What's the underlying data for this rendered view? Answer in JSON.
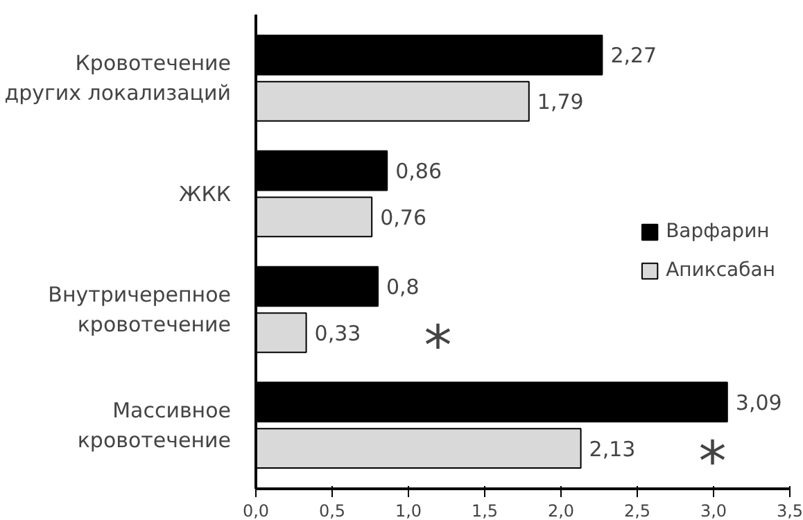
{
  "chart_data": {
    "type": "bar",
    "orientation": "horizontal",
    "categories": [
      "Кровотечение других локализаций",
      "ЖКК",
      "Внутричерепное кровотечение",
      "Массивное кровотечение"
    ],
    "series": [
      {
        "name": "Варфарин",
        "color": "#000000",
        "values": [
          2.27,
          0.86,
          0.8,
          3.09
        ],
        "value_labels": [
          "2,27",
          "0,86",
          "0,8",
          "3,09"
        ]
      },
      {
        "name": "Апиксабан",
        "color": "#d9d9d9",
        "values": [
          1.79,
          0.76,
          0.33,
          2.13
        ],
        "value_labels": [
          "1,79",
          "0,76",
          "0,33",
          "2,13"
        ]
      }
    ],
    "xlim": [
      0,
      3.5
    ],
    "xticks": [
      {
        "value": 0,
        "label": "0,0"
      },
      {
        "value": 0.5,
        "label": "0,5"
      },
      {
        "value": 1,
        "label": "1,0"
      },
      {
        "value": 1.5,
        "label": "1,5"
      },
      {
        "value": 2,
        "label": "2,0"
      },
      {
        "value": 2.5,
        "label": "2,5"
      },
      {
        "value": 3,
        "label": "3,0"
      },
      {
        "value": 3.5,
        "label": "3,5"
      }
    ],
    "annotations": [
      {
        "text": "*",
        "x": 0.33,
        "y": "Внутричерепное кровотечение"
      },
      {
        "text": "*",
        "x": 2.13,
        "y": "Массивное кровотечение"
      }
    ],
    "legend": "right",
    "grid": false
  }
}
